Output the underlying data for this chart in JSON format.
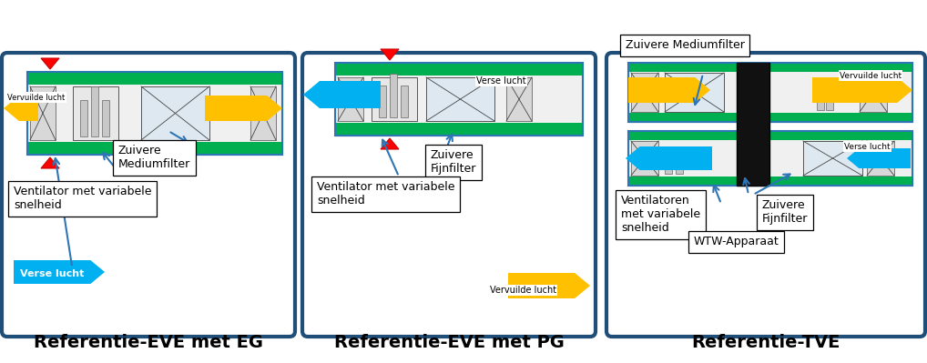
{
  "bg_color": "#ffffff",
  "border_color": "#1f4e79",
  "green_color": "#00b050",
  "yellow_color": "#ffc000",
  "cyan_color": "#00b0f0",
  "blue_color": "#2e75b6",
  "title1": "Referentie-EVE met EG",
  "title2": "Referentie-EVE met PG",
  "title3": "Referentie-TVE"
}
